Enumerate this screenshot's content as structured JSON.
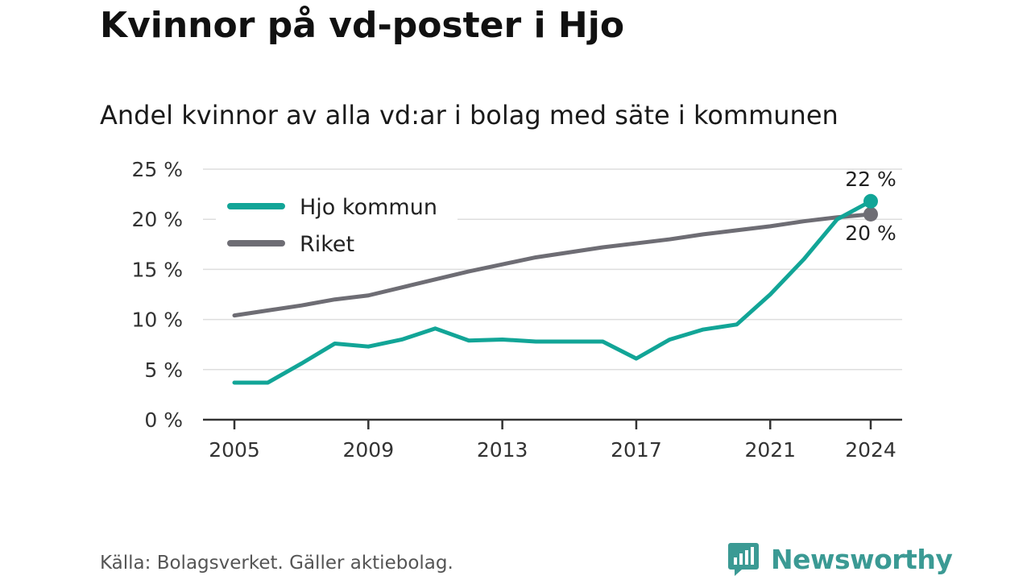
{
  "title": "Kvinnor på vd-poster i Hjo",
  "subtitle": "Andel kvinnor av alla vd:ar i bolag med säte i kommunen",
  "source": "Källa: Bolagsverket. Gäller aktiebolag.",
  "brand": {
    "name": "Newsworthy",
    "color": "#3b9a94"
  },
  "chart_data": {
    "type": "line",
    "x": [
      2005,
      2006,
      2007,
      2008,
      2009,
      2010,
      2011,
      2012,
      2013,
      2014,
      2015,
      2016,
      2017,
      2018,
      2019,
      2020,
      2021,
      2022,
      2023,
      2024
    ],
    "series": [
      {
        "name": "Hjo kommun",
        "color": "#12a597",
        "values": [
          3.7,
          3.7,
          5.6,
          7.6,
          7.3,
          8.0,
          9.1,
          7.9,
          8.0,
          7.8,
          7.8,
          7.8,
          6.1,
          8.0,
          9.0,
          9.5,
          12.5,
          16.0,
          20.0,
          21.8
        ],
        "end_label": "22 %"
      },
      {
        "name": "Riket",
        "color": "#6e6d74",
        "values": [
          10.4,
          10.9,
          11.4,
          12.0,
          12.4,
          13.2,
          14.0,
          14.8,
          15.5,
          16.2,
          16.7,
          17.2,
          17.6,
          18.0,
          18.5,
          18.9,
          19.3,
          19.8,
          20.2,
          20.5
        ],
        "end_label": "20 %"
      }
    ],
    "ylim": [
      0,
      25
    ],
    "y_ticks": [
      0,
      5,
      10,
      15,
      20,
      25
    ],
    "y_tick_labels": [
      "0 %",
      "5 %",
      "10 %",
      "15 %",
      "20 %",
      "25 %"
    ],
    "x_ticks": [
      2005,
      2009,
      2013,
      2017,
      2021,
      2024
    ],
    "x_tick_labels": [
      "2005",
      "2009",
      "2013",
      "2017",
      "2021",
      "2024"
    ],
    "xlabel": "",
    "ylabel": "",
    "grid": true,
    "legend": "top-left"
  }
}
